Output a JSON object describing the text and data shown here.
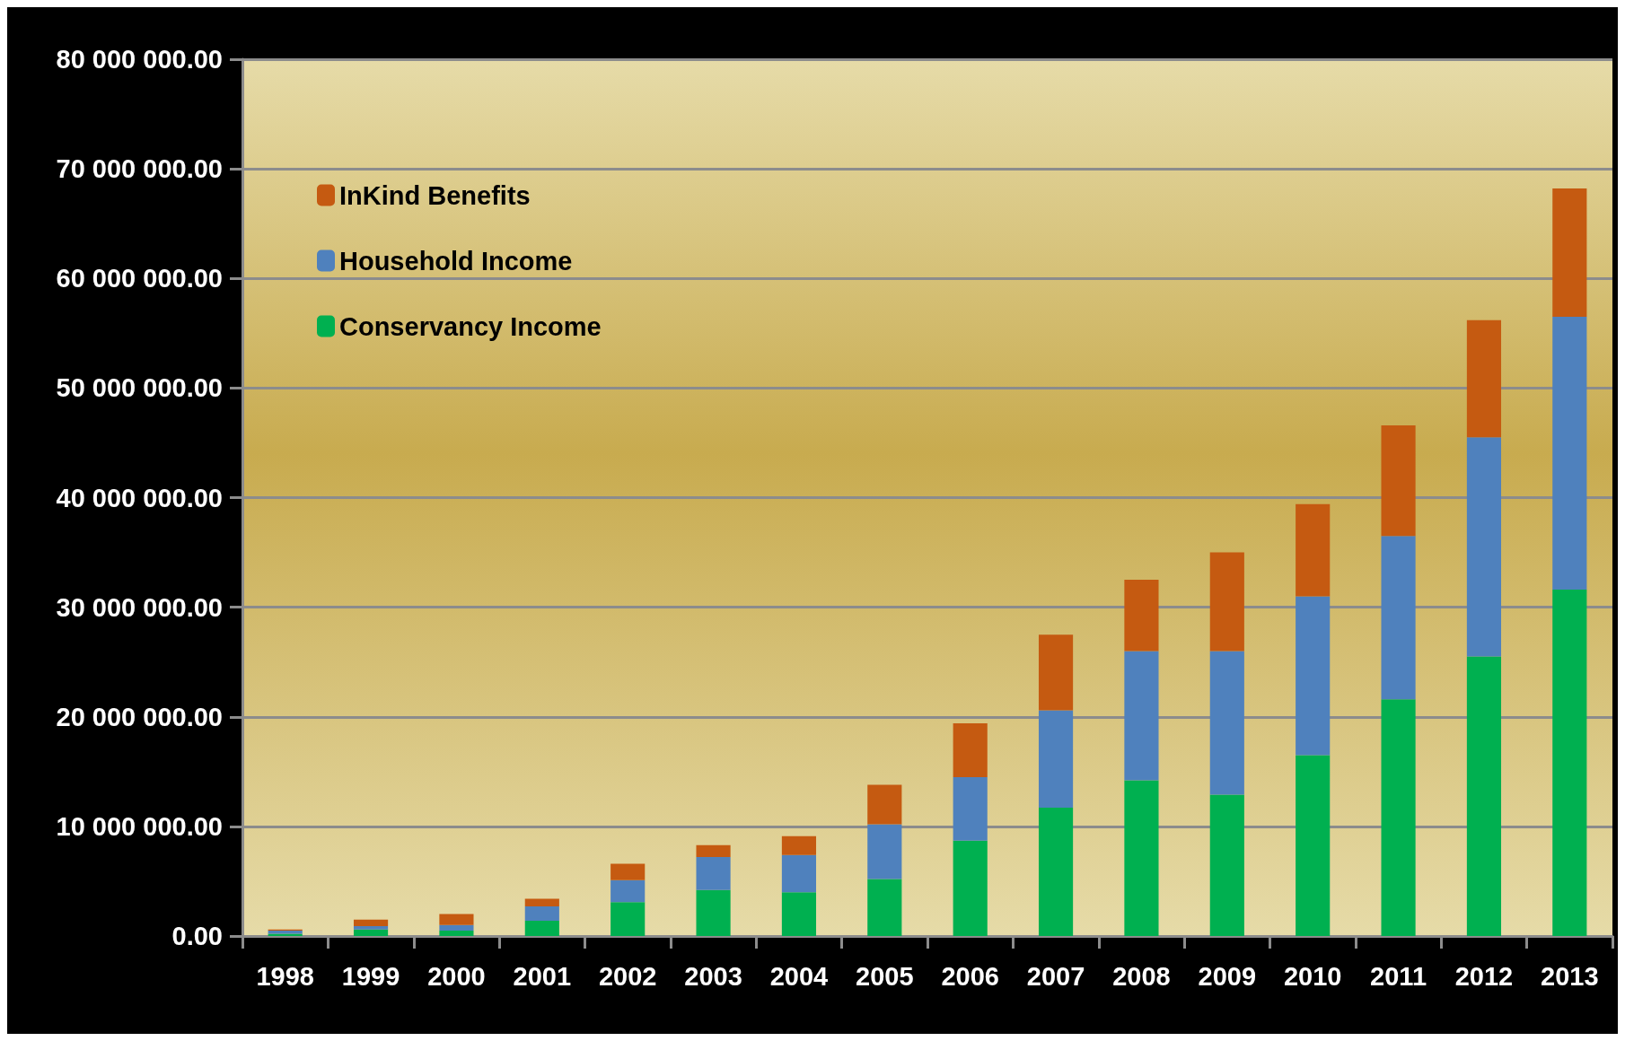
{
  "chart_data": {
    "type": "bar",
    "stacked": true,
    "categories": [
      "1998",
      "1999",
      "2000",
      "2001",
      "2002",
      "2003",
      "2004",
      "2005",
      "2006",
      "2007",
      "2008",
      "2009",
      "2010",
      "2011",
      "2012",
      "2013"
    ],
    "series": [
      {
        "name": "Conservancy Income",
        "color": "#00b050",
        "values": [
          200000,
          600000,
          500000,
          1400000,
          3100000,
          4200000,
          4000000,
          5200000,
          8700000,
          11700000,
          14200000,
          12900000,
          16500000,
          21600000,
          25500000,
          31600000
        ]
      },
      {
        "name": "Household Income",
        "color": "#4f81bd",
        "values": [
          300000,
          300000,
          500000,
          1300000,
          2000000,
          3000000,
          3400000,
          5000000,
          5800000,
          8900000,
          11800000,
          13100000,
          14500000,
          14900000,
          20000000,
          24900000
        ]
      },
      {
        "name": "InKind Benefits",
        "color": "#c55a11",
        "values": [
          100000,
          600000,
          1000000,
          700000,
          1500000,
          1100000,
          1700000,
          3600000,
          4900000,
          6900000,
          6500000,
          9000000,
          8400000,
          10100000,
          10700000,
          11700000
        ]
      }
    ],
    "ylim": [
      0,
      80000000
    ],
    "yticks": [
      {
        "value": 0,
        "label": "0.00"
      },
      {
        "value": 10000000,
        "label": "10 000 000.00"
      },
      {
        "value": 20000000,
        "label": "20 000 000.00"
      },
      {
        "value": 30000000,
        "label": "30 000 000.00"
      },
      {
        "value": 40000000,
        "label": "40 000 000.00"
      },
      {
        "value": 50000000,
        "label": "50 000 000.00"
      },
      {
        "value": 60000000,
        "label": "60 000 000.00"
      },
      {
        "value": 70000000,
        "label": "70 000 000.00"
      },
      {
        "value": 80000000,
        "label": "80 000 000.00"
      }
    ],
    "grid": "y",
    "legend": "top left"
  }
}
